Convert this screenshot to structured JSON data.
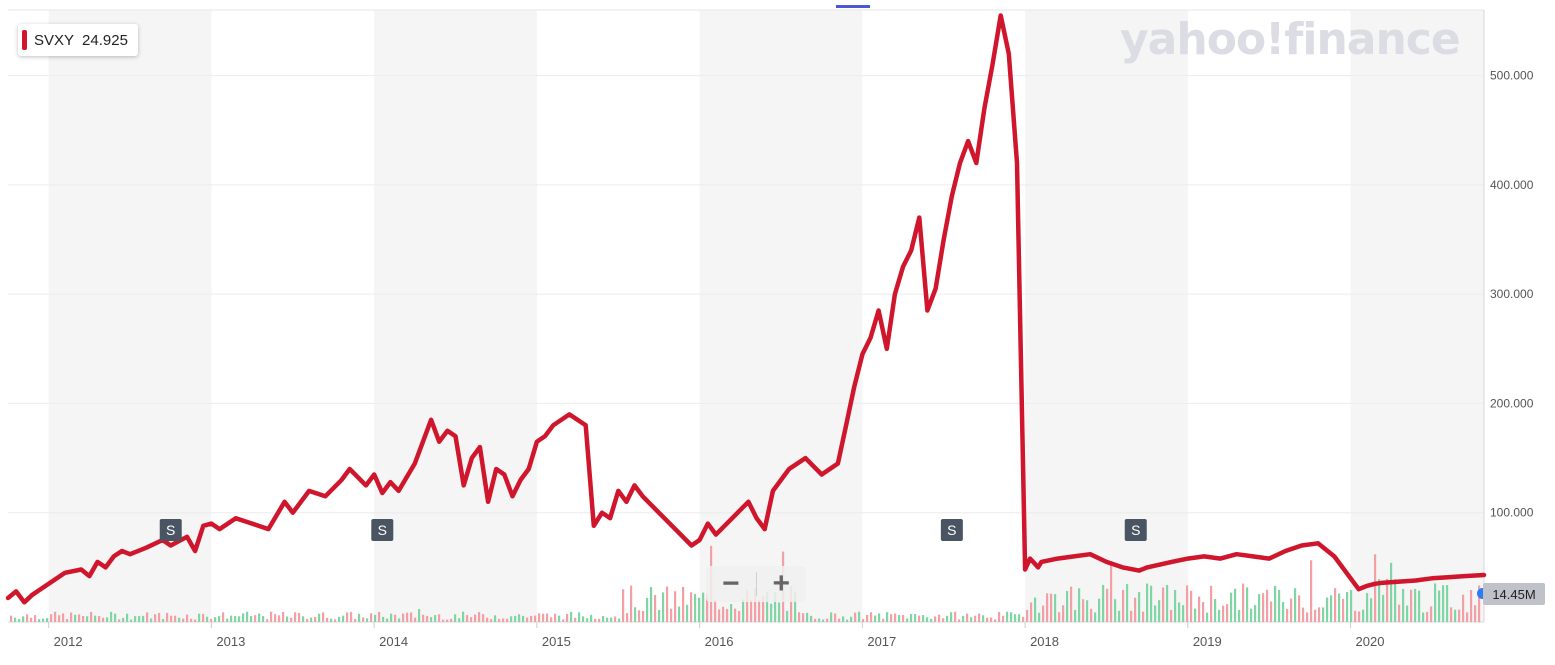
{
  "legend": {
    "symbol": "SVXY",
    "value": "24.925",
    "color": "#d0162c"
  },
  "watermark": "yahoo!finance",
  "zoom": {
    "minus": "−",
    "plus": "+"
  },
  "volume_badge": "14.45M",
  "chart_data": {
    "type": "line",
    "ylim": [
      0,
      560
    ],
    "xlim": [
      2011.75,
      2020.82
    ],
    "yticks": [
      "100.000",
      "200.000",
      "300.000",
      "400.000",
      "500.000"
    ],
    "ytick_values": [
      100,
      200,
      300,
      400,
      500
    ],
    "xticks": [
      "2012",
      "2013",
      "2014",
      "2015",
      "2016",
      "2017",
      "2018",
      "2019",
      "2020"
    ],
    "xtick_values": [
      2012,
      2013,
      2014,
      2015,
      2016,
      2017,
      2018,
      2019,
      2020
    ],
    "split_markers": [
      {
        "label": "S",
        "x": 2012.75
      },
      {
        "label": "S",
        "x": 2014.05
      },
      {
        "label": "S",
        "x": 2017.55
      },
      {
        "label": "S",
        "x": 2018.68
      }
    ],
    "series": [
      {
        "color": "#d0162c",
        "x": [
          2011.75,
          2011.8,
          2011.85,
          2011.9,
          2012.0,
          2012.1,
          2012.2,
          2012.25,
          2012.3,
          2012.35,
          2012.4,
          2012.45,
          2012.5,
          2012.6,
          2012.7,
          2012.75,
          2012.85,
          2012.9,
          2012.95,
          2013.0,
          2013.05,
          2013.15,
          2013.25,
          2013.35,
          2013.45,
          2013.5,
          2013.6,
          2013.7,
          2013.8,
          2013.85,
          2013.95,
          2014.0,
          2014.05,
          2014.1,
          2014.15,
          2014.25,
          2014.35,
          2014.4,
          2014.45,
          2014.5,
          2014.55,
          2014.6,
          2014.65,
          2014.7,
          2014.75,
          2014.8,
          2014.85,
          2014.9,
          2014.95,
          2015.0,
          2015.05,
          2015.1,
          2015.15,
          2015.2,
          2015.3,
          2015.35,
          2015.4,
          2015.45,
          2015.5,
          2015.55,
          2015.6,
          2015.65,
          2015.75,
          2015.85,
          2015.95,
          2016.0,
          2016.05,
          2016.1,
          2016.2,
          2016.3,
          2016.35,
          2016.4,
          2016.45,
          2016.55,
          2016.65,
          2016.75,
          2016.85,
          2016.9,
          2016.95,
          2017.0,
          2017.05,
          2017.1,
          2017.15,
          2017.2,
          2017.25,
          2017.3,
          2017.35,
          2017.4,
          2017.45,
          2017.5,
          2017.55,
          2017.6,
          2017.65,
          2017.7,
          2017.75,
          2017.8,
          2017.85,
          2017.9,
          2017.95,
          2018.0,
          2018.03,
          2018.05,
          2018.08,
          2018.1,
          2018.2,
          2018.3,
          2018.4,
          2018.5,
          2018.6,
          2018.7,
          2018.75,
          2018.9,
          2019.0,
          2019.1,
          2019.2,
          2019.3,
          2019.4,
          2019.5,
          2019.6,
          2019.7,
          2019.8,
          2019.9,
          2020.0,
          2020.05,
          2020.1,
          2020.15,
          2020.2,
          2020.3,
          2020.4,
          2020.5,
          2020.6,
          2020.7,
          2020.82
        ],
        "values": [
          22,
          28,
          18,
          25,
          35,
          45,
          48,
          42,
          55,
          50,
          60,
          65,
          62,
          68,
          75,
          70,
          78,
          65,
          88,
          90,
          85,
          95,
          90,
          85,
          110,
          100,
          120,
          115,
          130,
          140,
          125,
          135,
          118,
          128,
          120,
          145,
          185,
          165,
          175,
          170,
          125,
          150,
          160,
          110,
          140,
          135,
          115,
          130,
          140,
          165,
          170,
          180,
          185,
          190,
          180,
          88,
          100,
          95,
          120,
          110,
          125,
          115,
          100,
          85,
          70,
          75,
          90,
          80,
          95,
          110,
          95,
          85,
          120,
          140,
          150,
          135,
          145,
          180,
          215,
          245,
          260,
          285,
          250,
          300,
          325,
          340,
          370,
          285,
          305,
          350,
          390,
          420,
          440,
          420,
          470,
          510,
          555,
          520,
          420,
          48,
          58,
          55,
          50,
          55,
          58,
          60,
          62,
          55,
          50,
          47,
          50,
          55,
          58,
          60,
          58,
          62,
          60,
          58,
          65,
          70,
          72,
          60,
          40,
          30,
          33,
          35,
          36,
          37,
          38,
          40,
          41,
          42,
          43
        ]
      }
    ]
  }
}
